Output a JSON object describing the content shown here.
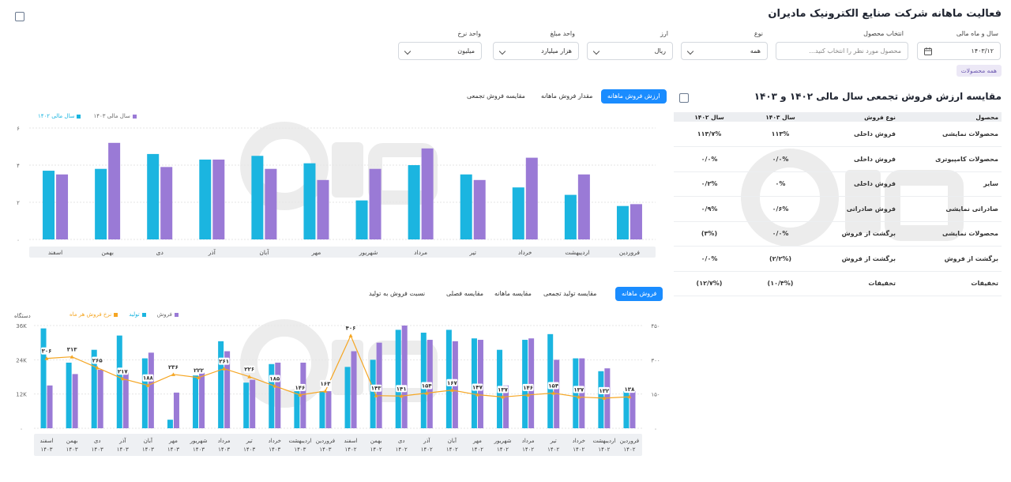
{
  "page": {
    "title": "فعالیت ماهانه شرکت صنایع الکترونیک مادیران"
  },
  "filters": {
    "year_month": {
      "label": "سال و ماه مالی",
      "value": "۱۴۰۳/۱۲"
    },
    "product": {
      "label": "انتخاب محصول",
      "placeholder": "محصول مورد نظر را انتخاب کنید..."
    },
    "type": {
      "label": "نوع",
      "value": "همه"
    },
    "currency": {
      "label": "ارز",
      "value": "ریال"
    },
    "amount_unit": {
      "label": "واحد مبلغ",
      "value": "هزار میلیارد"
    },
    "rate_unit": {
      "label": "واحد نرخ",
      "value": "میلیون"
    }
  },
  "chip_all_products": "همه محصولات",
  "top_tabs": {
    "items": [
      "ارزش فروش ماهانه",
      "مقدار فروش ماهانه",
      "مقایسه فروش تجمعی"
    ]
  },
  "bottom_tabs": {
    "items": [
      "فروش ماهانه",
      "مقایسه تولید تجمعی",
      "مقایسه ماهانه",
      "مقایسه فصلی",
      "نسبت فروش به تولید"
    ]
  },
  "cumulative": {
    "title": "مقایسه ارزش فروش تجمعی سال مالی ۱۴۰۲ و ۱۴۰۳",
    "headers": [
      "محصول",
      "نوع فروش",
      "سال ۱۴۰۳",
      "سال ۱۴۰۲"
    ],
    "rows": [
      [
        "محصولات نمایشی",
        "فروش داخلی",
        "۱۱۳%",
        "۱۱۳/۷%"
      ],
      [
        "محصولات کامپیوتری",
        "فروش داخلی",
        "۰/۰%",
        "۰/۰%"
      ],
      [
        "سایر",
        "فروش داخلی",
        "۰%",
        "۰/۲%"
      ],
      [
        "صادراتی نمایشی",
        "فروش صادراتی",
        "۰/۶%",
        "۰/۹%"
      ],
      [
        "محصولات نمایشی",
        "برگشت از فروش",
        "۰/۰%",
        "(۳%)"
      ],
      [
        "برگشت از فروش",
        "برگشت از فروش",
        "(۲/۲%)",
        "۰/۰%"
      ],
      [
        "تخفیفات",
        "تخفیفات",
        "(۱۰/۴%)",
        "(۱۲/۷%)"
      ]
    ]
  },
  "chart_data": [
    {
      "type": "bar",
      "title": "",
      "categories": [
        "فروردین",
        "اردیبهشت",
        "خرداد",
        "تیر",
        "مرداد",
        "شهریور",
        "مهر",
        "آبان",
        "آذر",
        "دی",
        "بهمن",
        "اسفند"
      ],
      "series": [
        {
          "name": "سال مالی ۱۴۰۲",
          "color": "#1bb5e0",
          "values": [
            1.8,
            2.4,
            2.8,
            3.5,
            4.0,
            2.1,
            4.1,
            4.5,
            4.3,
            4.6,
            3.8,
            3.7
          ]
        },
        {
          "name": "سال مالی ۱۴۰۳",
          "color": "#9a7ad6",
          "values": [
            1.9,
            3.5,
            4.4,
            3.2,
            4.9,
            3.8,
            3.2,
            3.8,
            4.3,
            3.9,
            5.2,
            3.5
          ]
        }
      ],
      "yticks": [
        "۰",
        "۲",
        "۴",
        "۶"
      ],
      "ylim": [
        0,
        6
      ],
      "legend_position": "top-left"
    },
    {
      "type": "bar",
      "title": "",
      "ylabel": "دستگاه",
      "categories": [
        "فروردین ۱۴۰۲",
        "اردیبهشت ۱۴۰۲",
        "خرداد ۱۴۰۲",
        "تیر ۱۴۰۲",
        "مرداد ۱۴۰۲",
        "شهریور ۱۴۰۲",
        "مهر ۱۴۰۲",
        "آبان ۱۴۰۲",
        "آذر ۱۴۰۲",
        "دی ۱۴۰۲",
        "بهمن ۱۴۰۲",
        "اسفند ۱۴۰۲",
        "فروردین ۱۴۰۳",
        "اردیبهشت ۱۴۰۳",
        "خرداد ۱۴۰۳",
        "تیر ۱۴۰۳",
        "مرداد ۱۴۰۳",
        "شهریور ۱۴۰۳",
        "مهر ۱۴۰۳",
        "آبان ۱۴۰۳",
        "آذر ۱۴۰۳",
        "دی ۱۴۰۳",
        "بهمن ۱۴۰۳",
        "اسفند ۱۴۰۳"
      ],
      "series": [
        {
          "name": "تولید",
          "color": "#1bb5e0",
          "values": [
            13000,
            20000,
            24500,
            33000,
            31000,
            27500,
            31500,
            34500,
            33500,
            34500,
            24000,
            21500,
            13000,
            13000,
            22500,
            16000,
            30500,
            18500,
            3000,
            24500,
            32500,
            27500,
            23000,
            35000
          ]
        },
        {
          "name": "فروش",
          "color": "#9a7ad6",
          "values": [
            13000,
            21000,
            24500,
            24000,
            31500,
            15000,
            31000,
            30500,
            31000,
            36000,
            30000,
            27000,
            13000,
            23000,
            23000,
            17000,
            27000,
            19500,
            12500,
            26500,
            19500,
            20500,
            19000,
            15000
          ]
        },
        {
          "name": "نرخ فروش هر ماه",
          "color": "#f5a623",
          "values": [
            138,
            132,
            137,
            154,
            146,
            137,
            147,
            167,
            154,
            141,
            143,
            406,
            163,
            146,
            185,
            226,
            261,
            222,
            236,
            188,
            217,
            265,
            313,
            306
          ]
        }
      ],
      "yticks_left": [
        "۰",
        "12K",
        "24K",
        "36K"
      ],
      "ylim_left": [
        0,
        36000
      ],
      "yticks_right": [
        "۰",
        "۱۵۰",
        "۳۰۰",
        "۴۵۰"
      ],
      "ylim_right": [
        0,
        450
      ],
      "rate_labels": [
        "۱۳۸",
        "۱۳۲",
        "۱۳۷",
        "۱۵۴",
        "۱۴۶",
        "۱۳۷",
        "۱۴۷",
        "۱۶۷",
        "۱۵۴",
        "۱۴۱",
        "۱۴۳",
        "۴۰۶",
        "۱۶۳",
        "۱۴۶",
        "۱۸۵",
        "۲۲۶",
        "۲۶۱",
        "۲۲۲",
        "۲۳۶",
        "۱۸۸",
        "۲۱۷",
        "۲۶۵",
        "۳۱۳",
        "۳۰۶"
      ],
      "legend_position": "top-left"
    }
  ]
}
